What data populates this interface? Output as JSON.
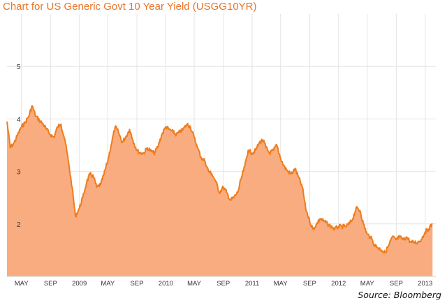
{
  "chart_data": {
    "type": "area",
    "title": "Chart for US Generic Govt 10 Year Yield (USGG10YR)",
    "source": "Source: Bloomberg",
    "xlabel": "",
    "ylabel": "",
    "ylim": [
      1.0,
      6.0
    ],
    "y_ticks": [
      "2",
      "3",
      "4",
      "5"
    ],
    "x_ticks": [
      "MAY",
      "SEP",
      "2009",
      "MAY",
      "SEP",
      "2010",
      "MAY",
      "SEP",
      "2011",
      "MAY",
      "SEP",
      "2012",
      "MAY",
      "SEP",
      "2013"
    ],
    "grid": true,
    "colors": {
      "line": "#ee7c1e",
      "fill": "#f9ac7f",
      "title": "#e8742a"
    },
    "series": [
      {
        "x": [
          "2008-03-01",
          "2008-03-15",
          "2008-04-01",
          "2008-04-15",
          "2008-05-01",
          "2008-05-15",
          "2008-06-01",
          "2008-06-15",
          "2008-07-01",
          "2008-07-15",
          "2008-08-01",
          "2008-08-15",
          "2008-09-01",
          "2008-09-15",
          "2008-10-01",
          "2008-10-15",
          "2008-11-01",
          "2008-11-15",
          "2008-12-01",
          "2008-12-15",
          "2009-01-01",
          "2009-01-15",
          "2009-02-01",
          "2009-02-15",
          "2009-03-01",
          "2009-03-15",
          "2009-04-01",
          "2009-04-15",
          "2009-05-01",
          "2009-05-15",
          "2009-06-01",
          "2009-06-15",
          "2009-07-01",
          "2009-07-15",
          "2009-08-01",
          "2009-08-15",
          "2009-09-01",
          "2009-09-15",
          "2009-10-01",
          "2009-10-15",
          "2009-11-01",
          "2009-11-15",
          "2009-12-01",
          "2009-12-15",
          "2010-01-01",
          "2010-01-15",
          "2010-02-01",
          "2010-02-15",
          "2010-03-01",
          "2010-03-15",
          "2010-04-01",
          "2010-04-15",
          "2010-05-01",
          "2010-05-15",
          "2010-06-01",
          "2010-06-15",
          "2010-07-01",
          "2010-07-15",
          "2010-08-01",
          "2010-08-15",
          "2010-09-01",
          "2010-09-15",
          "2010-10-01",
          "2010-10-15",
          "2010-11-01",
          "2010-11-15",
          "2010-12-01",
          "2010-12-15",
          "2011-01-01",
          "2011-01-15",
          "2011-02-01",
          "2011-02-15",
          "2011-03-01",
          "2011-03-15",
          "2011-04-01",
          "2011-04-15",
          "2011-05-01",
          "2011-05-15",
          "2011-06-01",
          "2011-06-15",
          "2011-07-01",
          "2011-07-15",
          "2011-08-01",
          "2011-08-15",
          "2011-09-01",
          "2011-09-15",
          "2011-10-01",
          "2011-10-15",
          "2011-11-01",
          "2011-11-15",
          "2011-12-01",
          "2011-12-15",
          "2012-01-01",
          "2012-01-15",
          "2012-02-01",
          "2012-02-15",
          "2012-03-01",
          "2012-03-15",
          "2012-04-01",
          "2012-04-15",
          "2012-05-01",
          "2012-05-15",
          "2012-06-01",
          "2012-06-15",
          "2012-07-01",
          "2012-07-15",
          "2012-08-01",
          "2012-08-15",
          "2012-09-01",
          "2012-09-15",
          "2012-10-01",
          "2012-10-15",
          "2012-11-01",
          "2012-11-15",
          "2012-12-01",
          "2012-12-15",
          "2013-01-01",
          "2013-01-15",
          "2013-02-01"
        ],
        "values": [
          3.95,
          3.45,
          3.55,
          3.7,
          3.85,
          3.92,
          4.05,
          4.25,
          4.05,
          3.98,
          3.9,
          3.8,
          3.7,
          3.65,
          3.85,
          3.9,
          3.6,
          3.2,
          2.7,
          2.15,
          2.3,
          2.5,
          2.8,
          2.95,
          2.9,
          2.7,
          2.75,
          2.95,
          3.2,
          3.5,
          3.85,
          3.75,
          3.55,
          3.65,
          3.8,
          3.6,
          3.4,
          3.35,
          3.35,
          3.45,
          3.38,
          3.35,
          3.5,
          3.7,
          3.85,
          3.8,
          3.75,
          3.7,
          3.75,
          3.8,
          3.9,
          3.85,
          3.65,
          3.45,
          3.25,
          3.2,
          3.0,
          2.95,
          2.8,
          2.6,
          2.7,
          2.6,
          2.45,
          2.5,
          2.6,
          2.85,
          3.1,
          3.4,
          3.35,
          3.4,
          3.55,
          3.6,
          3.45,
          3.35,
          3.4,
          3.5,
          3.25,
          3.1,
          3.0,
          2.95,
          3.05,
          2.9,
          2.7,
          2.3,
          2.05,
          1.9,
          2.0,
          2.1,
          2.05,
          2.0,
          1.95,
          1.9,
          1.95,
          1.95,
          1.95,
          2.0,
          2.1,
          2.3,
          2.25,
          2.0,
          1.8,
          1.75,
          1.6,
          1.55,
          1.5,
          1.45,
          1.6,
          1.75,
          1.7,
          1.75,
          1.7,
          1.75,
          1.65,
          1.65,
          1.65,
          1.7,
          1.85,
          1.9,
          2.0
        ]
      }
    ]
  }
}
